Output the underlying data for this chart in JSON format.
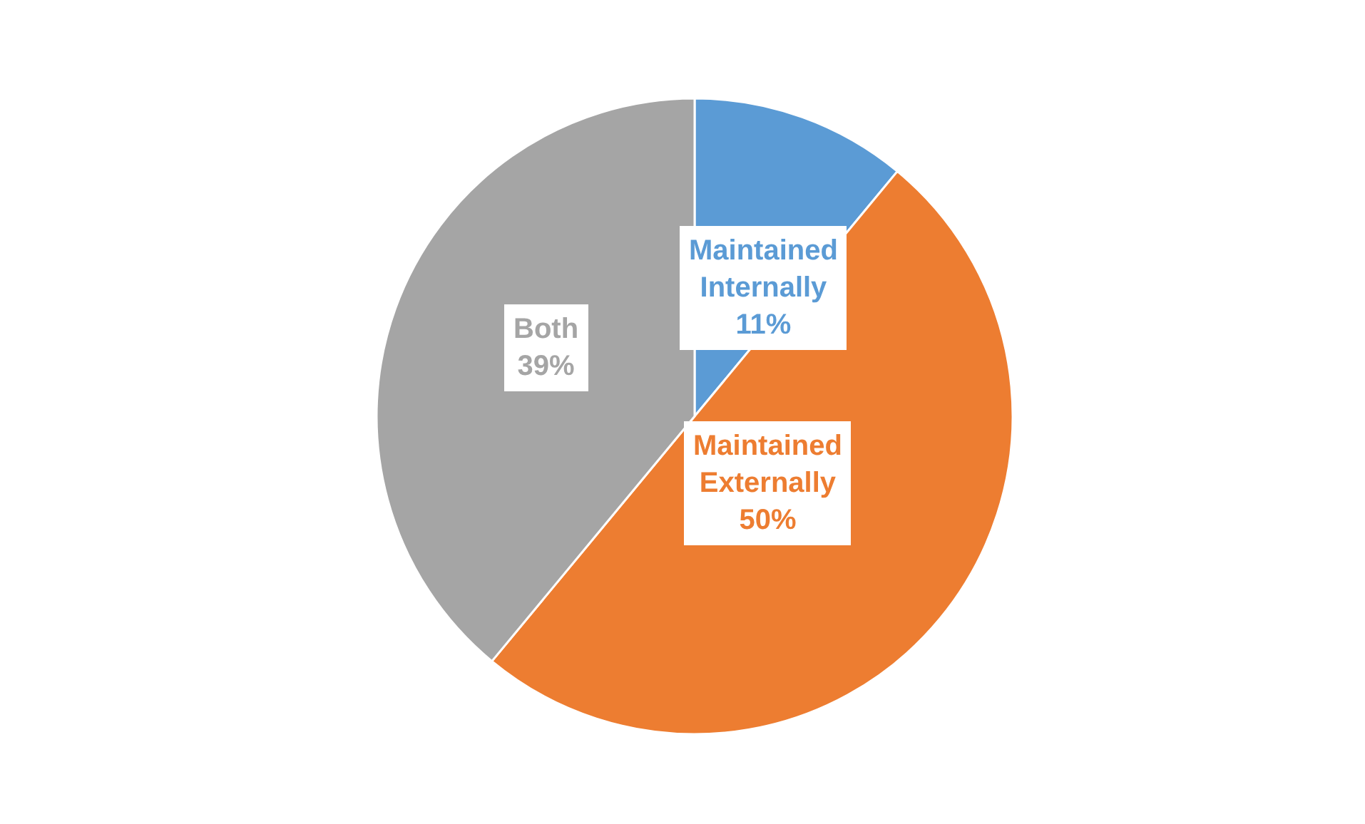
{
  "chart_data": {
    "type": "pie",
    "categories": [
      "Maintained Internally",
      "Maintained Externally",
      "Both"
    ],
    "values": [
      11,
      50,
      39
    ],
    "value_labels": [
      "11%",
      "50%",
      "39%"
    ],
    "colors": [
      "#5b9bd5",
      "#ed7d31",
      "#a5a5a5"
    ],
    "legend": false
  }
}
